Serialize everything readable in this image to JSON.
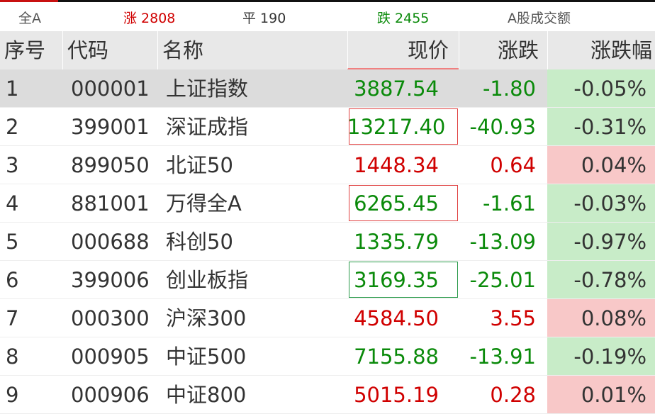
{
  "stats": {
    "market": "全A",
    "up": "涨 2808",
    "flat": "平 190",
    "down": "跌 2455",
    "turnover": "A股成交额"
  },
  "colors": {
    "up": "#d00000",
    "down": "#0a8a0a",
    "up_bg": "#f8c8c8",
    "down_bg": "#c8ecc8",
    "selected_bg": "#dcdcdc"
  },
  "columns": [
    "序号",
    "代码",
    "名称",
    "现价",
    "涨跌",
    "涨跌幅"
  ],
  "rows": [
    {
      "no": "1",
      "code": "000001",
      "name": "上证指数",
      "price": "3887.54",
      "change": "-1.80",
      "pct": "-0.05%",
      "dir": "down",
      "selected": true
    },
    {
      "no": "2",
      "code": "399001",
      "name": "深证成指",
      "price": "13217.40",
      "change": "-40.93",
      "pct": "-0.31%",
      "dir": "down",
      "box": "up"
    },
    {
      "no": "3",
      "code": "899050",
      "name": "北证50",
      "price": "1448.34",
      "change": "0.64",
      "pct": "0.04%",
      "dir": "up"
    },
    {
      "no": "4",
      "code": "881001",
      "name": "万得全A",
      "price": "6265.45",
      "change": "-1.61",
      "pct": "-0.03%",
      "dir": "down",
      "box": "up"
    },
    {
      "no": "5",
      "code": "000688",
      "name": "科创50",
      "price": "1335.79",
      "change": "-13.09",
      "pct": "-0.97%",
      "dir": "down"
    },
    {
      "no": "6",
      "code": "399006",
      "name": "创业板指",
      "price": "3169.35",
      "change": "-25.01",
      "pct": "-0.78%",
      "dir": "down",
      "box": "down"
    },
    {
      "no": "7",
      "code": "000300",
      "name": "沪深300",
      "price": "4584.50",
      "change": "3.55",
      "pct": "0.08%",
      "dir": "up"
    },
    {
      "no": "8",
      "code": "000905",
      "name": "中证500",
      "price": "7155.88",
      "change": "-13.91",
      "pct": "-0.19%",
      "dir": "down"
    },
    {
      "no": "9",
      "code": "000906",
      "name": "中证800",
      "price": "5015.19",
      "change": "0.28",
      "pct": "0.01%",
      "dir": "up"
    }
  ]
}
